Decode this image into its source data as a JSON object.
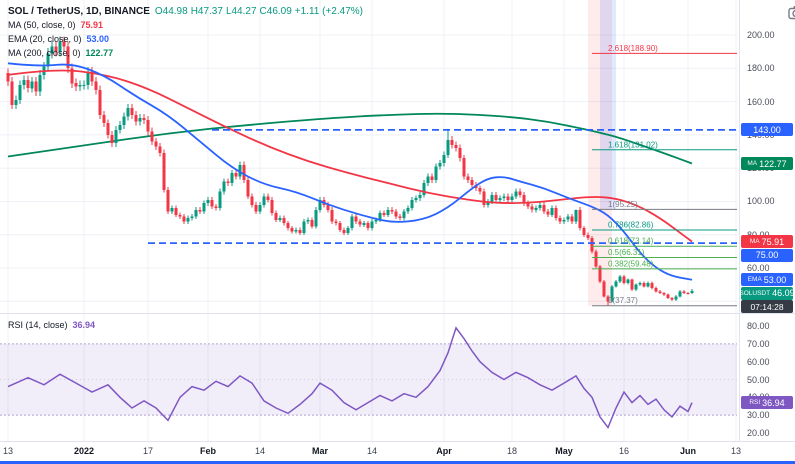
{
  "legend": {
    "symbol": "SOL / TetherUS, 1D, BINANCE",
    "o": "O44.98",
    "h": "H47.37",
    "l": "L44.27",
    "c": "C46.09",
    "change": "+1.11 (+2.47%)",
    "ma50_label": "MA (50, close, 0)",
    "ma50_value": "75.91",
    "ema20_label": "EMA (20, close, 0)",
    "ema20_value": "53.00",
    "ma200_label": "MA (200, close, 0)",
    "ma200_value": "122.77",
    "rsi_label": "RSI (14, close)",
    "rsi_value": "36.94"
  },
  "price_scale": {
    "ticks": [
      200,
      180,
      160,
      140,
      120,
      100,
      80,
      60,
      40
    ],
    "badges": [
      {
        "prefix": "",
        "label": "143.00",
        "price": 143.0,
        "bg": "#2962ff"
      },
      {
        "prefix": "MA",
        "label": "122.77",
        "price": 122.77,
        "bg": "#00875a"
      },
      {
        "prefix": "MA",
        "label": "75.91",
        "price": 75.91,
        "bg": "#f23645"
      },
      {
        "prefix": "",
        "label": "75.00",
        "price": 75.0,
        "bg": "#2962ff"
      },
      {
        "prefix": "EMA",
        "label": "53.00",
        "price": 53.0,
        "bg": "#2962ff"
      },
      {
        "prefix": "SOLUSDT",
        "label": "46.09",
        "price": 46.09,
        "bg": "#089981",
        "sub": "07:14:28"
      }
    ]
  },
  "rsi_scale": {
    "badge": {
      "prefix": "RSI",
      "label": "36.94",
      "value_num": 36.94,
      "bg": "#7e57c2"
    }
  },
  "time_axis": {
    "labels": [
      {
        "i": 0,
        "t": "13"
      },
      {
        "i": 19,
        "t": "2022"
      },
      {
        "i": 35,
        "t": "17"
      },
      {
        "i": 50,
        "t": "Feb"
      },
      {
        "i": 63,
        "t": "14"
      },
      {
        "i": 78,
        "t": "Mar"
      },
      {
        "i": 91,
        "t": "14"
      },
      {
        "i": 109,
        "t": "Apr"
      },
      {
        "i": 126,
        "t": "18"
      },
      {
        "i": 139,
        "t": "May"
      },
      {
        "i": 154,
        "t": "16"
      },
      {
        "i": 170,
        "t": "Jun"
      },
      {
        "i": 182,
        "t": "13"
      }
    ]
  },
  "chart_data": {
    "type": "candlestick",
    "title": "SOL / TetherUS, 1D, BINANCE",
    "symbol": "SOLUSDT",
    "interval": "1D",
    "exchange": "BINANCE",
    "last_ohlc": {
      "o": 44.98,
      "h": 47.37,
      "l": 44.27,
      "c": 46.09,
      "change": "+1.11 (+2.47%)"
    },
    "main_ylim": [
      33,
      221
    ],
    "colors": {
      "up": "#089981",
      "down": "#f23645",
      "grid": "#eef0f6",
      "level": "#2962ff"
    },
    "candles": {
      "start_date_label": "Dec 13",
      "wick_pct": 1.6,
      "closes": [
        172,
        158,
        161,
        170,
        173,
        168,
        172,
        166,
        176,
        181,
        189,
        193,
        190,
        196,
        193,
        180,
        171,
        169,
        170,
        170,
        178,
        172,
        167,
        152,
        147,
        140,
        135,
        143,
        146,
        151,
        156,
        152,
        148,
        150,
        149,
        142,
        136,
        133,
        129,
        107,
        94,
        96,
        92,
        91,
        88,
        90,
        91,
        95,
        94,
        99,
        101,
        97,
        96,
        106,
        112,
        111,
        117,
        115,
        122,
        113,
        103,
        98,
        94,
        98,
        103,
        101,
        93,
        89,
        90,
        87,
        84,
        82,
        83,
        81,
        88,
        89,
        85,
        95,
        101,
        98,
        95,
        88,
        87,
        83,
        81,
        84,
        91,
        88,
        86,
        87,
        84,
        88,
        89,
        93,
        92,
        95,
        94,
        91,
        90,
        94,
        96,
        101,
        102,
        104,
        111,
        115,
        113,
        121,
        123,
        128,
        137,
        134,
        132,
        126,
        115,
        113,
        110,
        108,
        106,
        98,
        100,
        104,
        101,
        102,
        103,
        101,
        103,
        106,
        104,
        99,
        97,
        95,
        96,
        98,
        94,
        92,
        96,
        90,
        88,
        89,
        91,
        88,
        95,
        84,
        80,
        78,
        70,
        61,
        52,
        43,
        40,
        49,
        52,
        55,
        51,
        53,
        47,
        50,
        51,
        49,
        51,
        48,
        46,
        45,
        44,
        42,
        41,
        43,
        46,
        45,
        44.98,
        46.09
      ],
      "overrides": {
        "110": {
          "h": 143.0
        },
        "142": {
          "h": 95.25
        },
        "150": {
          "l": 37.37
        },
        "171": {
          "o": 44.98,
          "h": 47.37,
          "l": 44.27,
          "c": 46.09
        }
      }
    },
    "ma200": {
      "name": "MA 200",
      "value": 122.77,
      "color": "#00875a",
      "points": [
        [
          0,
          127
        ],
        [
          20,
          134
        ],
        [
          40,
          141
        ],
        [
          60,
          146
        ],
        [
          80,
          150
        ],
        [
          95,
          152
        ],
        [
          110,
          153
        ],
        [
          125,
          151
        ],
        [
          135,
          148
        ],
        [
          145,
          143
        ],
        [
          152,
          139
        ],
        [
          158,
          134
        ],
        [
          164,
          129
        ],
        [
          171,
          122.8
        ]
      ]
    },
    "ma50": {
      "name": "MA 50",
      "value": 75.91,
      "color": "#f23645",
      "points": [
        [
          0,
          176
        ],
        [
          12,
          180
        ],
        [
          25,
          176
        ],
        [
          35,
          168
        ],
        [
          45,
          156
        ],
        [
          55,
          144
        ],
        [
          65,
          133
        ],
        [
          75,
          124
        ],
        [
          85,
          117
        ],
        [
          95,
          111
        ],
        [
          105,
          105
        ],
        [
          115,
          101
        ],
        [
          122,
          99
        ],
        [
          130,
          99
        ],
        [
          138,
          101
        ],
        [
          146,
          103
        ],
        [
          152,
          102
        ],
        [
          158,
          97
        ],
        [
          163,
          90
        ],
        [
          167,
          83
        ],
        [
          171,
          75.9
        ]
      ]
    },
    "ema20": {
      "name": "EMA 20",
      "value": 53.0,
      "color": "#2962ff",
      "points": [
        [
          0,
          183
        ],
        [
          8,
          181
        ],
        [
          16,
          183
        ],
        [
          24,
          176
        ],
        [
          32,
          163
        ],
        [
          40,
          152
        ],
        [
          48,
          136
        ],
        [
          56,
          120
        ],
        [
          64,
          110
        ],
        [
          72,
          106
        ],
        [
          80,
          98
        ],
        [
          88,
          92
        ],
        [
          96,
          87
        ],
        [
          104,
          89
        ],
        [
          110,
          96
        ],
        [
          116,
          108
        ],
        [
          120,
          114
        ],
        [
          124,
          115
        ],
        [
          128,
          112
        ],
        [
          134,
          108
        ],
        [
          140,
          102
        ],
        [
          146,
          97
        ],
        [
          150,
          92
        ],
        [
          154,
          82
        ],
        [
          158,
          69
        ],
        [
          162,
          60
        ],
        [
          166,
          55
        ],
        [
          171,
          53
        ]
      ]
    },
    "levels": [
      {
        "label": "143.00",
        "price": 143.0,
        "start_i": 51
      },
      {
        "label": "75.00",
        "price": 75.0,
        "start_i": 35
      }
    ],
    "fib": {
      "start_i": 146,
      "levels": [
        {
          "r": "2.618",
          "label": "2.618(188.90)",
          "price": 188.9,
          "color": "#f23645"
        },
        {
          "r": "1.618",
          "label": "1.618(131.02)",
          "price": 131.02,
          "color": "#089981"
        },
        {
          "r": "1",
          "label": "1(95.25)",
          "price": 95.25,
          "color": "#787b86"
        },
        {
          "r": "0.786",
          "label": "0.786(82.86)",
          "price": 82.86,
          "color": "#089981"
        },
        {
          "r": "0.618",
          "label": "0.618(73.14)",
          "price": 73.14,
          "color": "#4caf50"
        },
        {
          "r": "0.5",
          "label": "0.5(66.31)",
          "price": 66.31,
          "color": "#4caf50"
        },
        {
          "r": "0.382",
          "label": "0.382(59.48)",
          "price": 59.48,
          "color": "#4caf50"
        },
        {
          "r": "0",
          "label": "0(37.37)",
          "price": 37.37,
          "color": "#787b86"
        }
      ]
    },
    "highlights": [
      {
        "i0": 145,
        "i1": 151,
        "p_top": 221,
        "p_bot": 37.37,
        "color": "rgba(242,54,69,0.10)"
      },
      {
        "i0": 148,
        "i1": 152,
        "p_top": 221,
        "p_bot": 95.25,
        "color": "rgba(41,98,255,0.14)"
      }
    ],
    "rsi": {
      "name": "RSI (14, close)",
      "value": 36.94,
      "color": "#7e57c2",
      "ylim": [
        16,
        84
      ],
      "ticks": [
        80,
        70,
        60,
        50,
        40,
        30,
        20
      ],
      "band": [
        30,
        70
      ],
      "band_fill": "rgba(126,87,194,0.10)",
      "points": [
        [
          0,
          46
        ],
        [
          5,
          51
        ],
        [
          9,
          47
        ],
        [
          13,
          53
        ],
        [
          17,
          48
        ],
        [
          21,
          43
        ],
        [
          25,
          47
        ],
        [
          28,
          40
        ],
        [
          31,
          34
        ],
        [
          34,
          38
        ],
        [
          37,
          34
        ],
        [
          40,
          27
        ],
        [
          43,
          40
        ],
        [
          46,
          46
        ],
        [
          49,
          44
        ],
        [
          52,
          49
        ],
        [
          55,
          46
        ],
        [
          58,
          52
        ],
        [
          61,
          48
        ],
        [
          64,
          38
        ],
        [
          67,
          34
        ],
        [
          70,
          31
        ],
        [
          73,
          36
        ],
        [
          76,
          42
        ],
        [
          78,
          48
        ],
        [
          81,
          44
        ],
        [
          84,
          37
        ],
        [
          87,
          33
        ],
        [
          90,
          37
        ],
        [
          93,
          41
        ],
        [
          96,
          38
        ],
        [
          99,
          42
        ],
        [
          102,
          40
        ],
        [
          105,
          46
        ],
        [
          108,
          55
        ],
        [
          110,
          65
        ],
        [
          112,
          79
        ],
        [
          114,
          73
        ],
        [
          116,
          66
        ],
        [
          118,
          60
        ],
        [
          121,
          54
        ],
        [
          124,
          50
        ],
        [
          127,
          54
        ],
        [
          130,
          51
        ],
        [
          133,
          47
        ],
        [
          136,
          44
        ],
        [
          139,
          48
        ],
        [
          142,
          52
        ],
        [
          144,
          45
        ],
        [
          146,
          40
        ],
        [
          148,
          29
        ],
        [
          150,
          23
        ],
        [
          152,
          34
        ],
        [
          154,
          43
        ],
        [
          156,
          37
        ],
        [
          158,
          41
        ],
        [
          160,
          36
        ],
        [
          162,
          39
        ],
        [
          164,
          33
        ],
        [
          166,
          29
        ],
        [
          168,
          35
        ],
        [
          170,
          32
        ],
        [
          171,
          36.94
        ]
      ]
    }
  }
}
